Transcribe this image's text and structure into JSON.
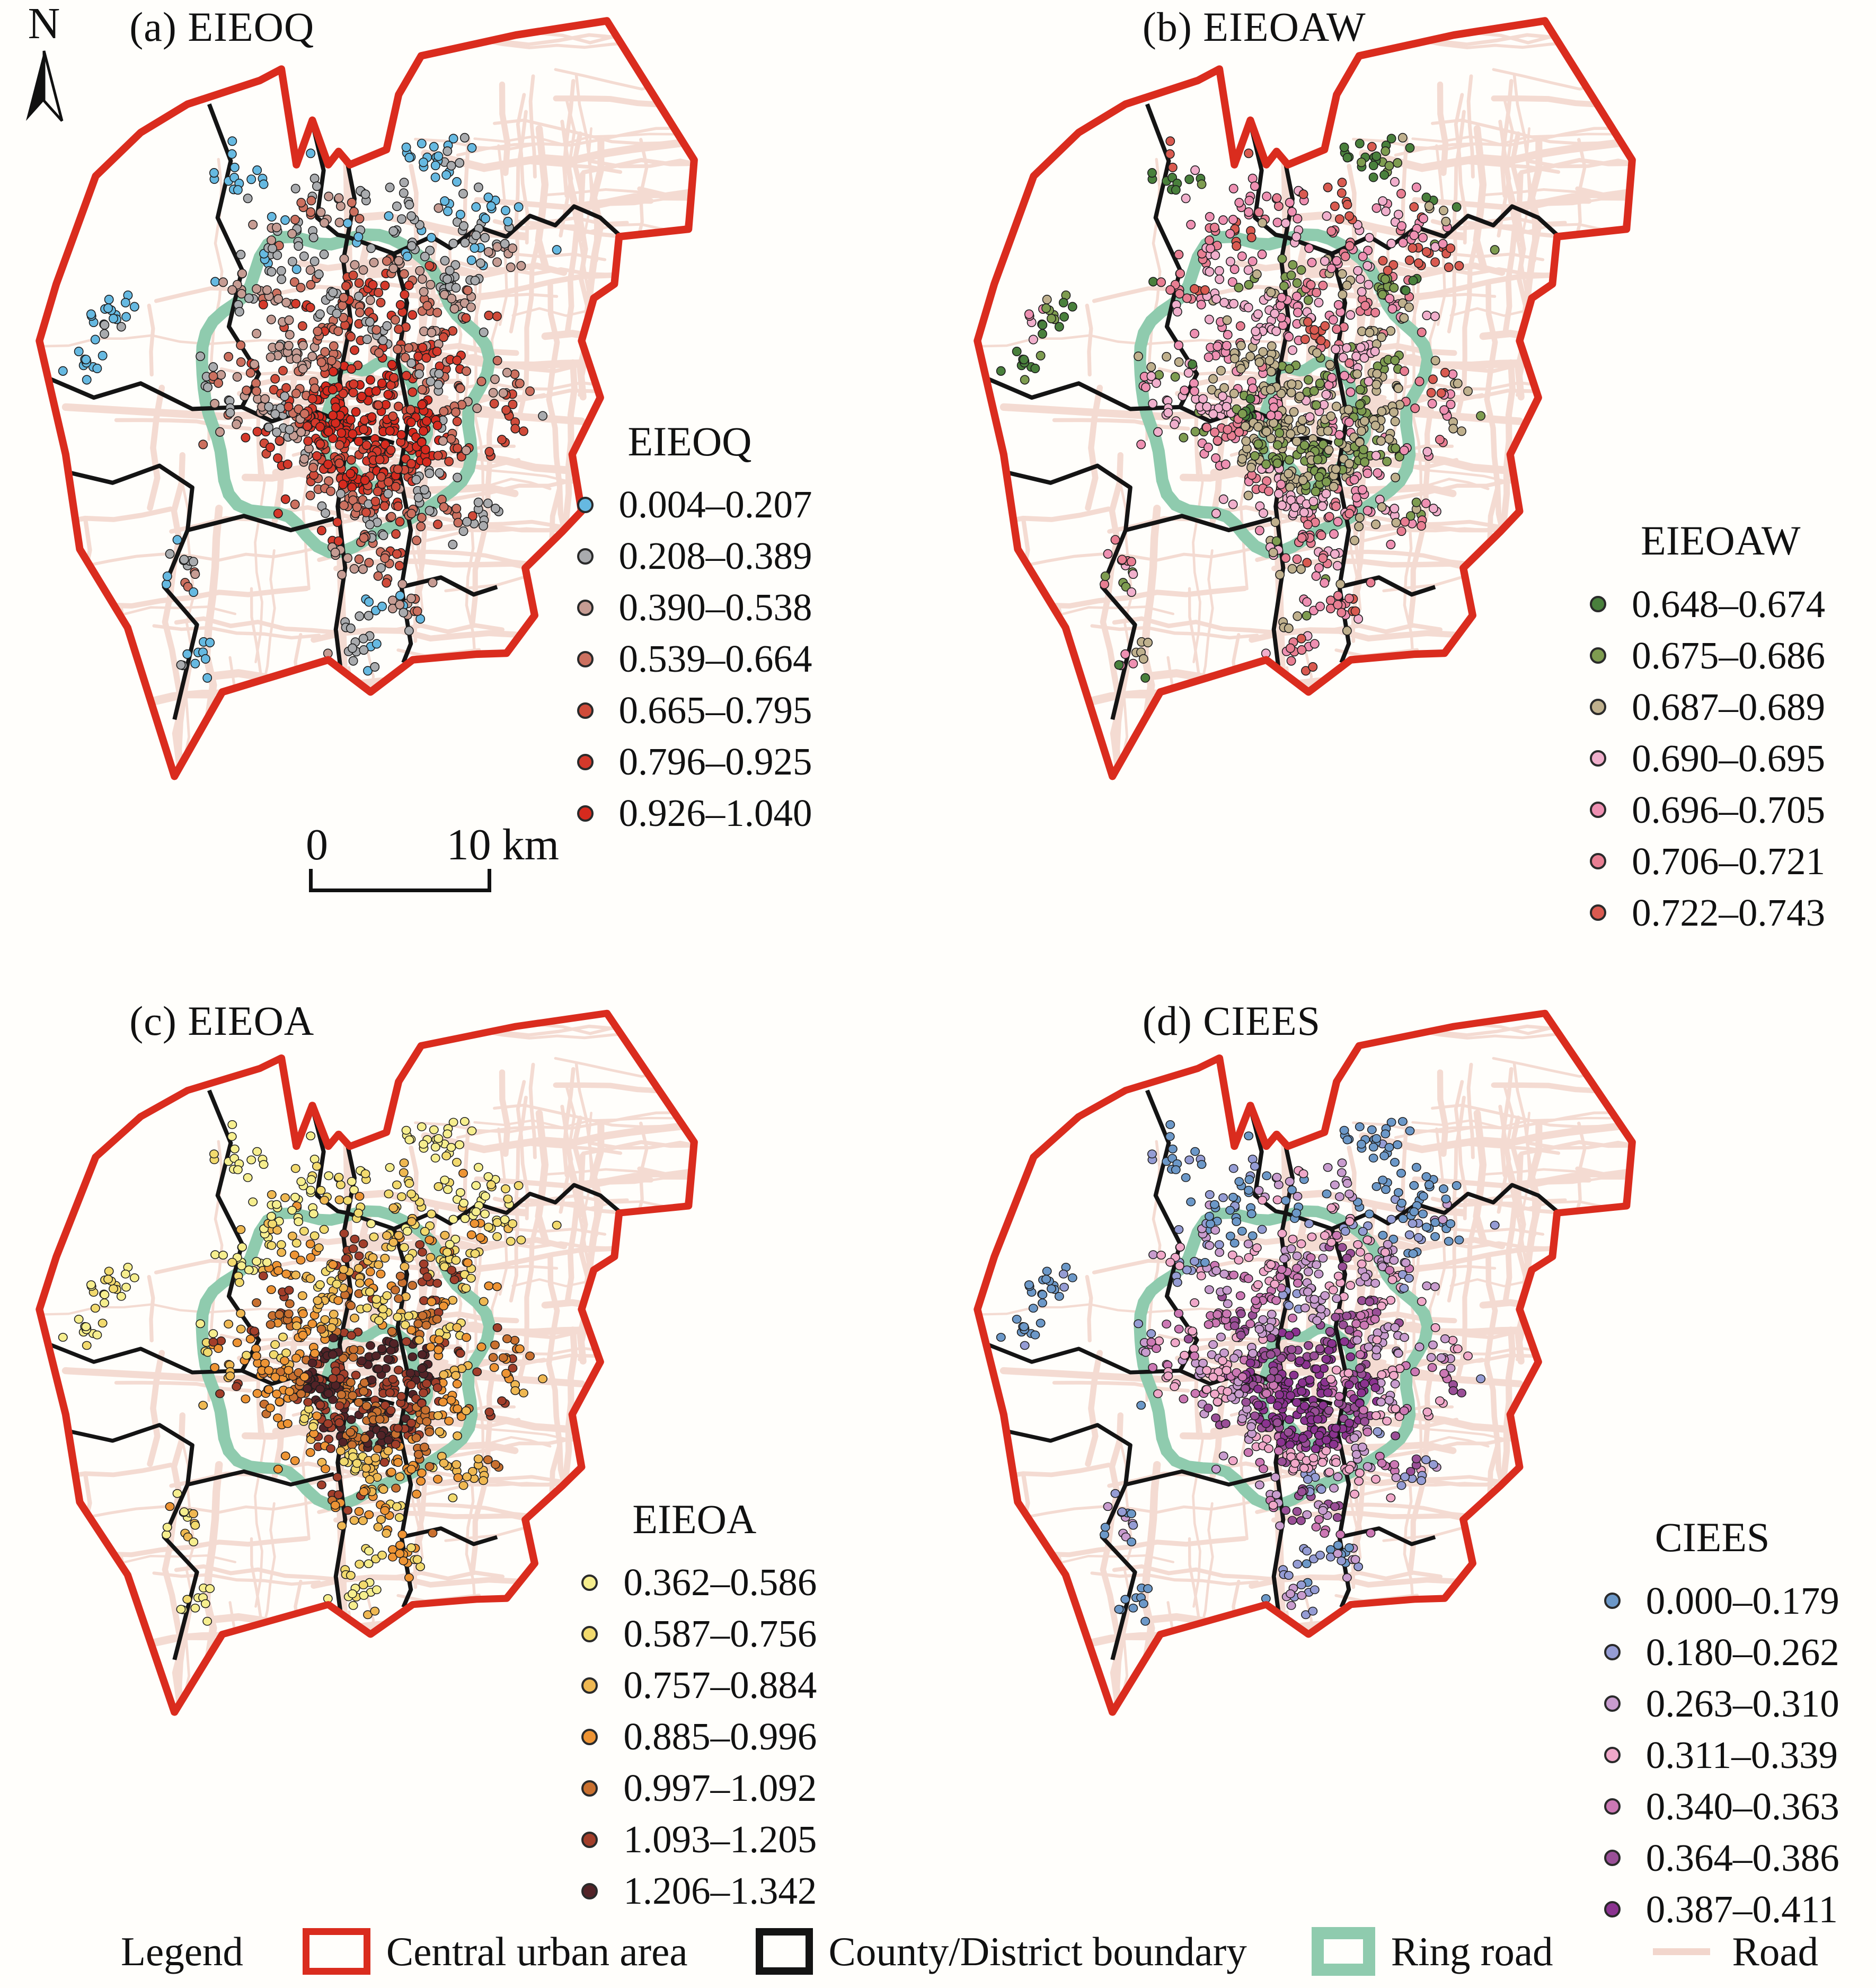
{
  "north": {
    "label": "N"
  },
  "scale_bar": {
    "zero_label": "0",
    "distance_label": "10 km"
  },
  "panels": [
    {
      "id": "a",
      "title": "(a) EIEOQ",
      "legend_title": "EIEOQ",
      "classes": [
        {
          "label": "0.004–0.207",
          "color": "#66b9e1"
        },
        {
          "label": "0.208–0.389",
          "color": "#a9abae"
        },
        {
          "label": "0.390–0.538",
          "color": "#c69c93"
        },
        {
          "label": "0.539–0.664",
          "color": "#cc705f"
        },
        {
          "label": "0.665–0.795",
          "color": "#d04b3a"
        },
        {
          "label": "0.796–0.925",
          "color": "#d5392b"
        },
        {
          "label": "0.926–1.040",
          "color": "#d62a1e"
        }
      ],
      "dot_distribution": {
        "core": [
          0,
          0,
          0,
          0.05,
          0.15,
          0.3,
          0.5
        ],
        "mid": [
          0,
          0.15,
          0.22,
          0.25,
          0.23,
          0.15,
          0
        ],
        "outer": [
          0.3,
          0.45,
          0.2,
          0.05,
          0,
          0,
          0
        ],
        "far": [
          0.85,
          0.15,
          0,
          0,
          0,
          0,
          0
        ]
      }
    },
    {
      "id": "b",
      "title": "(b) EIEOAW",
      "legend_title": "EIEOAW",
      "classes": [
        {
          "label": "0.648–0.674",
          "color": "#49803c"
        },
        {
          "label": "0.675–0.686",
          "color": "#7e9c50"
        },
        {
          "label": "0.687–0.689",
          "color": "#bfb08d"
        },
        {
          "label": "0.690–0.695",
          "color": "#f0afcc"
        },
        {
          "label": "0.696–0.705",
          "color": "#ee90b2"
        },
        {
          "label": "0.706–0.721",
          "color": "#e87e92"
        },
        {
          "label": "0.722–0.743",
          "color": "#d95a50"
        }
      ],
      "dot_distribution": {
        "core": [
          0.05,
          0.4,
          0.45,
          0.05,
          0.05,
          0,
          0
        ],
        "mid": [
          0.02,
          0.08,
          0.2,
          0.28,
          0.25,
          0.12,
          0.05
        ],
        "outer": [
          0.04,
          0.04,
          0.07,
          0.2,
          0.25,
          0.22,
          0.18
        ],
        "far": [
          0.5,
          0.15,
          0.05,
          0.1,
          0.05,
          0.05,
          0.1
        ]
      }
    },
    {
      "id": "c",
      "title": "(c) EIEOA",
      "legend_title": "EIEOA",
      "classes": [
        {
          "label": "0.362–0.586",
          "color": "#f6ee8e"
        },
        {
          "label": "0.587–0.756",
          "color": "#f2da6e"
        },
        {
          "label": "0.757–0.884",
          "color": "#efb852"
        },
        {
          "label": "0.885–0.996",
          "color": "#ee9434"
        },
        {
          "label": "0.997–1.092",
          "color": "#c9702f"
        },
        {
          "label": "1.093–1.205",
          "color": "#a23e2a"
        },
        {
          "label": "1.206–1.342",
          "color": "#532327"
        }
      ],
      "dot_distribution": {
        "core": [
          0,
          0,
          0,
          0.05,
          0.15,
          0.3,
          0.5
        ],
        "mid": [
          0,
          0.1,
          0.2,
          0.3,
          0.25,
          0.15,
          0
        ],
        "outer": [
          0.35,
          0.35,
          0.25,
          0.05,
          0,
          0,
          0
        ],
        "far": [
          0.8,
          0.2,
          0,
          0,
          0,
          0,
          0
        ]
      }
    },
    {
      "id": "d",
      "title": "(d) CIEES",
      "legend_title": "CIEES",
      "classes": [
        {
          "label": "0.000–0.179",
          "color": "#6c98c8"
        },
        {
          "label": "0.180–0.262",
          "color": "#959cd4"
        },
        {
          "label": "0.263–0.310",
          "color": "#c89cce"
        },
        {
          "label": "0.311–0.339",
          "color": "#f0a8c9"
        },
        {
          "label": "0.340–0.363",
          "color": "#cc78b4"
        },
        {
          "label": "0.364–0.386",
          "color": "#9a4f97"
        },
        {
          "label": "0.387–0.411",
          "color": "#8b3390"
        }
      ],
      "dot_distribution": {
        "core": [
          0,
          0,
          0,
          0.05,
          0.15,
          0.3,
          0.5
        ],
        "mid": [
          0,
          0.05,
          0.22,
          0.28,
          0.3,
          0.15,
          0
        ],
        "outer": [
          0.3,
          0.4,
          0.25,
          0.05,
          0,
          0,
          0
        ],
        "far": [
          0.85,
          0.15,
          0,
          0,
          0,
          0,
          0
        ]
      }
    }
  ],
  "map_style": {
    "central_urban_color": "#da2c1e",
    "district_color": "#141414",
    "ring_color": "#8fcbae",
    "road_color": "#f4dbd2",
    "dot_outline": "#1c1c1c",
    "background": "#fffefb"
  },
  "bottom_legend": {
    "label": "Legend",
    "items": [
      {
        "label": "Central urban area",
        "swatch": "red-outline-rect"
      },
      {
        "label": "County/District boundary",
        "swatch": "black-outline-rect"
      },
      {
        "label": "Ring road",
        "swatch": "green-thick-rect"
      },
      {
        "label": "Road",
        "swatch": "pink-line"
      }
    ]
  }
}
